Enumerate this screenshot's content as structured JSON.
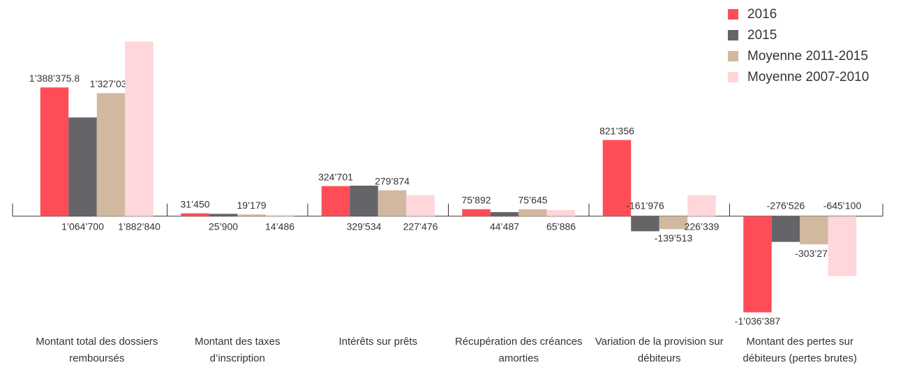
{
  "chart_data": {
    "type": "bar",
    "categories": [
      "Montant total des dossiers remboursés",
      "Montant des taxes d’inscription",
      "Intérêts sur prêts",
      "Récupération des créances amorties",
      "Variation de la provision sur débiteurs",
      "Montant des pertes sur débiteurs (pertes brutes)"
    ],
    "series": [
      {
        "name": "2016",
        "color": "#ff4d58",
        "values": [
          1388375.8,
          31450,
          324701,
          75892,
          821356,
          -1036387
        ],
        "value_labels": [
          "1’388’375.8",
          "31’450",
          "324’701",
          "75’892",
          "821’356",
          "-1’036’387"
        ]
      },
      {
        "name": "2015",
        "color": "#646469",
        "values": [
          1064700,
          25900,
          329534,
          44487,
          -161976,
          -276526
        ],
        "value_labels": [
          "1’064’700",
          "25’900",
          "329’534",
          "44’487",
          "-161’976",
          "-276’526"
        ]
      },
      {
        "name": "Moyenne 2011-2015",
        "color": "#d1b9a0",
        "values": [
          1327030,
          19179,
          279874,
          75645,
          -139513,
          -303273
        ],
        "value_labels": [
          "1’327’030",
          "19’179",
          "279’874",
          "75’645",
          "-139’513",
          "-303’273"
        ]
      },
      {
        "name": "Moyenne 2007-2010",
        "color": "#ffd6da",
        "values": [
          1882840,
          14486,
          227476,
          65886,
          226339,
          -645100
        ],
        "value_labels": [
          "1’882’840",
          "14’486",
          "227’476",
          "65’886",
          "226’339",
          "-645’100"
        ]
      }
    ],
    "ylim": [
      -1100000,
      2000000
    ],
    "legend": "top-right"
  }
}
